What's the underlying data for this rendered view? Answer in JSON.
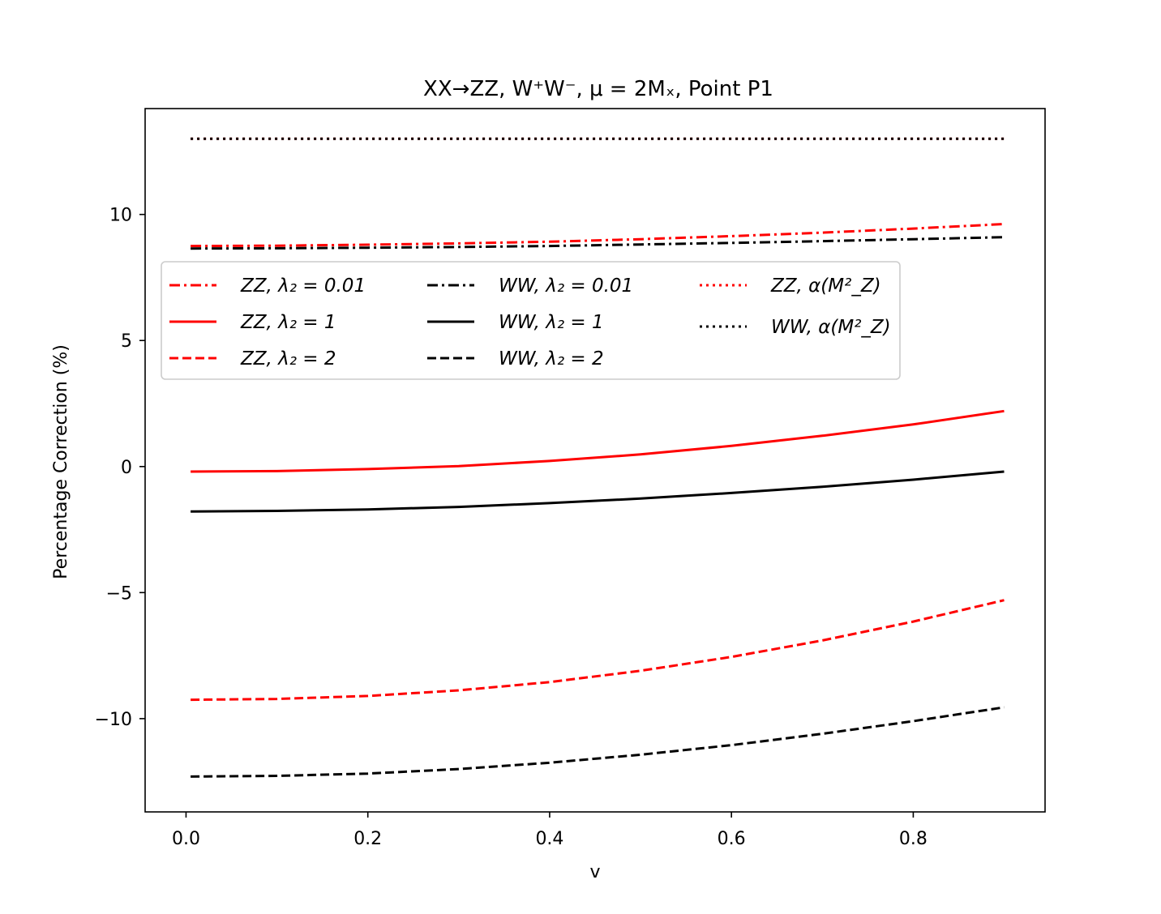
{
  "chart_data": {
    "type": "line",
    "title": "XX→ZZ, W⁺W⁻, μ = 2Mₓ, Point P1",
    "xlabel": "v",
    "ylabel": "Percentage Correction (%)",
    "xlim": [
      -0.045,
      0.945
    ],
    "ylim": [
      -13.7,
      14.2
    ],
    "xticks": [
      0.0,
      0.2,
      0.4,
      0.6,
      0.8
    ],
    "xtick_labels": [
      "0.0",
      "0.2",
      "0.4",
      "0.6",
      "0.8"
    ],
    "yticks": [
      -10,
      -5,
      0,
      5,
      10
    ],
    "ytick_labels": [
      "−10",
      "−5",
      "0",
      "5",
      "10"
    ],
    "legend_position": "upper-left",
    "x": [
      0.005,
      0.1,
      0.2,
      0.3,
      0.4,
      0.5,
      0.6,
      0.7,
      0.8,
      0.9
    ],
    "series": [
      {
        "name": "ZZ, λ₂ = 0.01",
        "color": "#ff0000",
        "dash": "dashdot",
        "values": [
          8.75,
          8.76,
          8.8,
          8.85,
          8.92,
          9.02,
          9.14,
          9.28,
          9.44,
          9.62
        ]
      },
      {
        "name": "ZZ, λ₂ = 1",
        "color": "#ff0000",
        "dash": "solid",
        "values": [
          -0.2,
          -0.18,
          -0.1,
          0.02,
          0.22,
          0.48,
          0.82,
          1.22,
          1.67,
          2.2
        ]
      },
      {
        "name": "ZZ, λ₂ = 2",
        "color": "#ff0000",
        "dash": "dashed",
        "values": [
          -9.25,
          -9.22,
          -9.1,
          -8.88,
          -8.55,
          -8.1,
          -7.55,
          -6.9,
          -6.15,
          -5.3
        ]
      },
      {
        "name": "WW, λ₂ = 0.01",
        "color": "#000000",
        "dash": "dashdot",
        "values": [
          8.65,
          8.66,
          8.68,
          8.71,
          8.75,
          8.81,
          8.87,
          8.94,
          9.02,
          9.1
        ]
      },
      {
        "name": "WW, λ₂ = 1",
        "color": "#000000",
        "dash": "solid",
        "values": [
          -1.78,
          -1.76,
          -1.7,
          -1.6,
          -1.45,
          -1.27,
          -1.05,
          -0.8,
          -0.52,
          -0.2
        ]
      },
      {
        "name": "WW, λ₂ = 2",
        "color": "#000000",
        "dash": "dashed",
        "values": [
          -12.3,
          -12.27,
          -12.18,
          -12.0,
          -11.75,
          -11.43,
          -11.05,
          -10.6,
          -10.1,
          -9.55
        ]
      },
      {
        "name": "ZZ, α(M²_Z)",
        "color": "#ff0000",
        "dash": "dotted",
        "values": [
          13.0,
          13.0,
          13.0,
          13.0,
          13.0,
          13.0,
          13.0,
          13.0,
          13.0,
          13.0
        ]
      },
      {
        "name": "WW, α(M²_Z)",
        "color": "#000000",
        "dash": "dotted",
        "values": [
          13.0,
          13.0,
          13.0,
          13.0,
          13.0,
          13.0,
          13.0,
          13.0,
          13.0,
          13.0
        ]
      }
    ]
  }
}
